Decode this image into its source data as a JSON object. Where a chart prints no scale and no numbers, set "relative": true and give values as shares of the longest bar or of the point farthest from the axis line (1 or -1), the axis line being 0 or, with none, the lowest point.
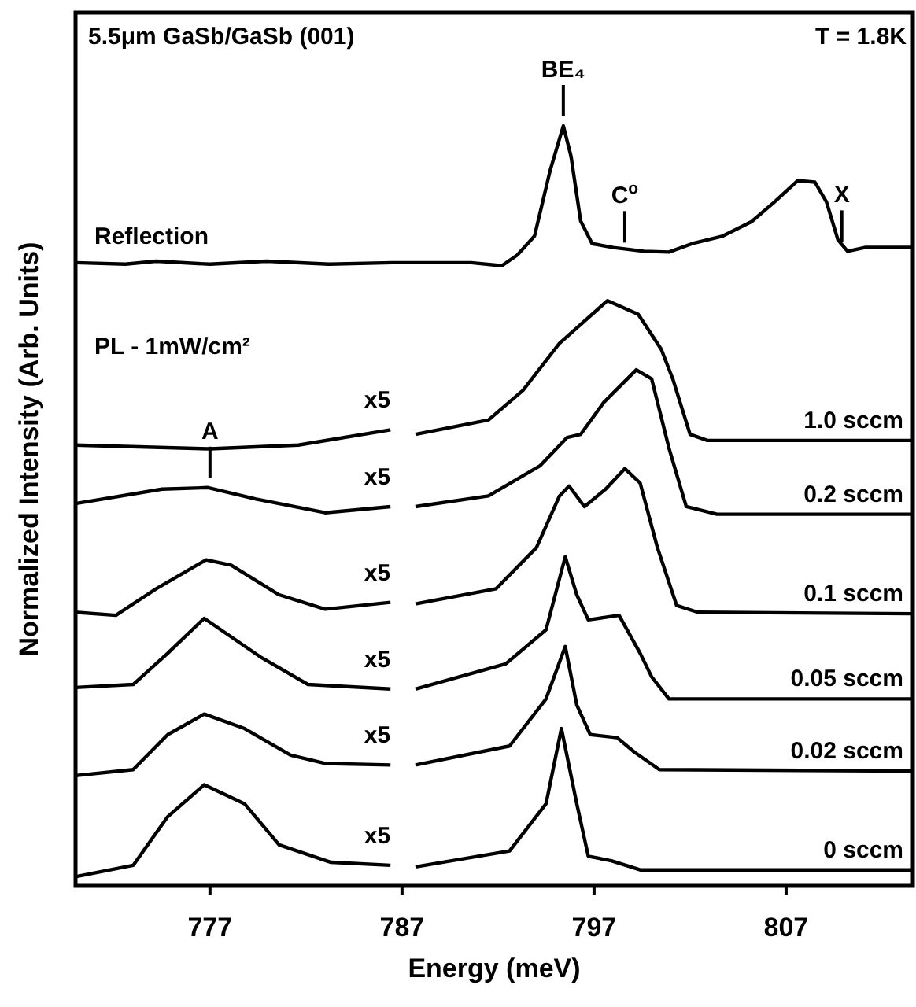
{
  "chart_data": {
    "type": "line",
    "title": "5.5μm GaSb/GaSb (001)",
    "xlabel": "Energy (meV)",
    "ylabel": "Normalized Intensity (Arb. Units)",
    "relative": true,
    "xlim": [
      770,
      813.6
    ],
    "xticks": [
      777,
      787,
      797,
      807
    ],
    "annotations": [
      "T = 1.8K",
      "PL - 1mW/cm²",
      "x5",
      "x5",
      "x5",
      "x5",
      "x5",
      "x5",
      {
        "text": "BE₄",
        "x": 795.4,
        "y": 1.0
      },
      {
        "text": "C$^{o}$",
        "x": 798.6,
        "y": 0.834
      },
      {
        "text": "X",
        "x": 809.9,
        "y": 0.835
      },
      {
        "text": "A",
        "x": 777,
        "y": 0.524
      }
    ],
    "series": [
      {
        "name": "Reflection",
        "color": "#000000",
        "x": [
          770.0,
          772.6,
          774.2,
          777,
          779.95,
          783.2,
          786.5,
          790.6,
          792.2,
          793.0,
          793.9,
          794.7,
          795.4,
          795.8,
          796.3,
          796.9,
          798.0,
          799.6,
          800.9,
          802.1,
          803.7,
          805.2,
          806.4,
          807.6,
          808.5,
          809.1,
          809.7,
          810.2,
          811.1,
          813.6
        ],
        "values": [
          0.82,
          0.818,
          0.822,
          0.818,
          0.822,
          0.818,
          0.82,
          0.82,
          0.816,
          0.83,
          0.855,
          0.94,
          1.0,
          0.96,
          0.875,
          0.845,
          0.84,
          0.835,
          0.834,
          0.845,
          0.855,
          0.874,
          0.9,
          0.928,
          0.926,
          0.9,
          0.85,
          0.835,
          0.84,
          0.84
        ]
      },
      {
        "name": "1.0 sccm",
        "color": "#000000",
        "x": [
          770.0,
          777,
          781.6,
          786.4,
          787,
          787.7,
          791.5,
          793.3,
          795.2,
          797.7,
          799.3,
          800.5,
          801.1,
          802.0,
          802.9,
          813.6
        ],
        "values": [
          0.58,
          0.575,
          0.58,
          0.6,
          null,
          0.594,
          0.613,
          0.652,
          0.714,
          0.77,
          0.752,
          0.706,
          0.667,
          0.594,
          0.586,
          0.586
        ]
      },
      {
        "name": "0.2 sccm",
        "color": "#000000",
        "x": [
          770.0,
          774.5,
          776.9,
          779.4,
          783.0,
          786.4,
          787,
          787.7,
          791.5,
          794.2,
          795.6,
          796.3,
          797.5,
          799.2,
          800.0,
          800.9,
          801.8,
          803.4,
          813.6
        ],
        "values": [
          0.503,
          0.522,
          0.524,
          0.509,
          0.491,
          0.499,
          null,
          0.499,
          0.513,
          0.553,
          0.59,
          0.594,
          0.636,
          0.679,
          0.667,
          0.576,
          0.499,
          0.489,
          0.489
        ]
      },
      {
        "name": "0.1 sccm",
        "color": "#000000",
        "x": [
          770.0,
          772.1,
          774.2,
          776.8,
          778.1,
          780.6,
          783.0,
          786.4,
          787,
          787.7,
          791.9,
          794.0,
          795.2,
          795.7,
          796.5,
          797.6,
          798.6,
          799.4,
          800.3,
          801.3,
          802.4,
          813.6
        ],
        "values": [
          0.36,
          0.356,
          0.391,
          0.429,
          0.422,
          0.383,
          0.364,
          0.373,
          null,
          0.371,
          0.391,
          0.445,
          0.513,
          0.526,
          0.499,
          0.522,
          0.549,
          0.53,
          0.445,
          0.369,
          0.36,
          0.358
        ]
      },
      {
        "name": "0.05 sccm",
        "color": "#000000",
        "x": [
          770.0,
          773.0,
          774.8,
          776.7,
          779.7,
          782.1,
          786.4,
          787,
          787.7,
          792.4,
          794.5,
          795.5,
          796.1,
          796.7,
          798.3,
          799.4,
          800.0,
          800.9,
          813.6
        ],
        "values": [
          0.261,
          0.265,
          0.306,
          0.352,
          0.3,
          0.265,
          0.259,
          null,
          0.259,
          0.292,
          0.337,
          0.433,
          0.383,
          0.35,
          0.356,
          0.306,
          0.275,
          0.246,
          0.246
        ]
      },
      {
        "name": "0.02 sccm",
        "color": "#000000",
        "x": [
          770.0,
          773.0,
          774.8,
          776.7,
          778.8,
          781.2,
          783.0,
          786.4,
          787,
          787.7,
          792.6,
          794.5,
          795.5,
          796.1,
          796.8,
          798.2,
          799.1,
          800.4,
          813.6
        ],
        "values": [
          0.145,
          0.153,
          0.199,
          0.226,
          0.207,
          0.172,
          0.161,
          0.159,
          null,
          0.159,
          0.184,
          0.246,
          0.315,
          0.238,
          0.199,
          0.195,
          0.176,
          0.153,
          0.151
        ]
      },
      {
        "name": "0 sccm",
        "color": "#000000",
        "x": [
          770.0,
          773.0,
          774.8,
          776.7,
          778.8,
          780.6,
          783.3,
          786.4,
          787,
          787.7,
          792.6,
          794.5,
          795.3,
          796.1,
          796.7,
          797.9,
          799.4,
          813.6
        ],
        "values": [
          0.012,
          0.027,
          0.091,
          0.133,
          0.108,
          0.054,
          0.031,
          0.027,
          null,
          0.025,
          0.046,
          0.108,
          0.207,
          0.108,
          0.039,
          0.033,
          0.021,
          0.021
        ]
      }
    ]
  }
}
